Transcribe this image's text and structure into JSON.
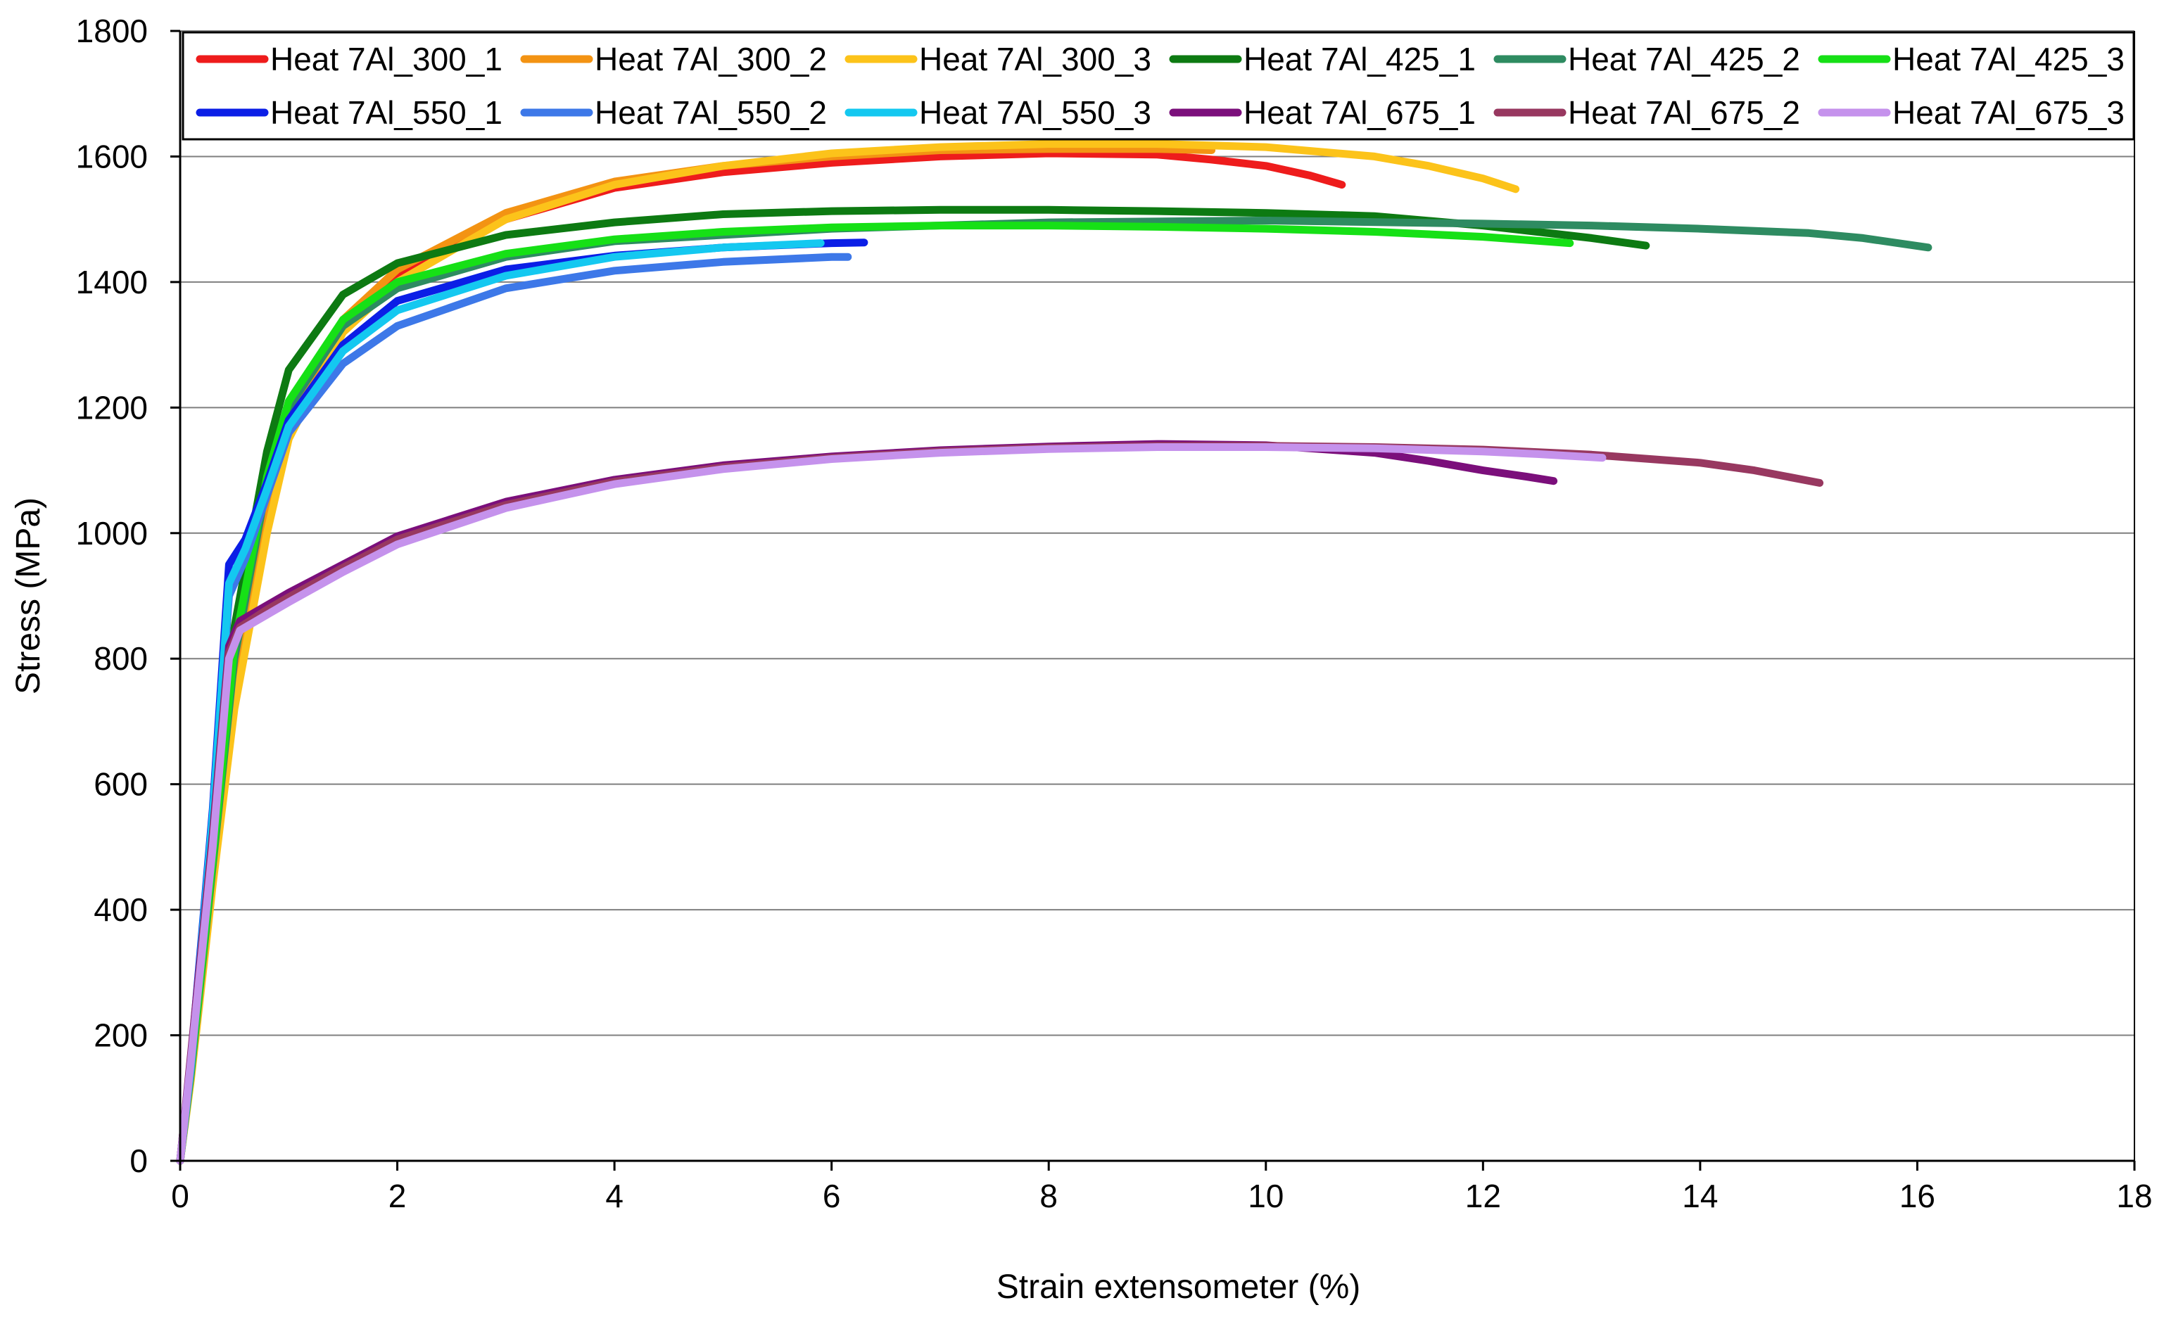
{
  "chart_data": {
    "type": "line",
    "title": "",
    "xlabel": "Strain extensometer (%)",
    "ylabel": "Stress (MPa)",
    "xlim": [
      0,
      18
    ],
    "ylim": [
      0,
      1800
    ],
    "xticks": [
      0,
      2,
      4,
      6,
      8,
      10,
      12,
      14,
      16,
      18
    ],
    "yticks": [
      0,
      200,
      400,
      600,
      800,
      1000,
      1200,
      1400,
      1600,
      1800
    ],
    "grid": "horizontal",
    "legend_position": "top",
    "series": [
      {
        "name": "Heat 7Al_300_1",
        "color": "#ee1c1c",
        "x": [
          0,
          0.1,
          0.3,
          0.5,
          0.8,
          1.0,
          1.5,
          2.0,
          3.0,
          4.0,
          5.0,
          6.0,
          7.0,
          8.0,
          9.0,
          9.5,
          10.0,
          10.4,
          10.7
        ],
        "y": [
          0,
          150,
          480,
          800,
          1060,
          1180,
          1330,
          1410,
          1500,
          1550,
          1575,
          1590,
          1600,
          1605,
          1603,
          1595,
          1585,
          1570,
          1555
        ]
      },
      {
        "name": "Heat 7Al_300_2",
        "color": "#f39313",
        "x": [
          0,
          0.1,
          0.3,
          0.5,
          0.8,
          1.0,
          1.5,
          2.0,
          3.0,
          4.0,
          5.0,
          6.0,
          7.0,
          8.0,
          9.0,
          9.5
        ],
        "y": [
          0,
          140,
          460,
          760,
          1030,
          1170,
          1340,
          1420,
          1510,
          1560,
          1585,
          1600,
          1610,
          1612,
          1612,
          1610
        ]
      },
      {
        "name": "Heat 7Al_300_3",
        "color": "#fcc31a",
        "x": [
          0,
          0.1,
          0.3,
          0.5,
          0.8,
          1.0,
          1.5,
          2.0,
          3.0,
          4.0,
          5.0,
          6.0,
          7.0,
          8.0,
          9.0,
          10.0,
          11.0,
          11.5,
          12.0,
          12.3
        ],
        "y": [
          0,
          130,
          440,
          720,
          1000,
          1150,
          1320,
          1400,
          1500,
          1555,
          1585,
          1605,
          1615,
          1620,
          1620,
          1615,
          1600,
          1585,
          1565,
          1548
        ]
      },
      {
        "name": "Heat 7Al_425_1",
        "color": "#0d7a12",
        "x": [
          0,
          0.1,
          0.3,
          0.5,
          0.8,
          1.0,
          1.5,
          2.0,
          3.0,
          4.0,
          5.0,
          6.0,
          7.0,
          8.0,
          9.0,
          10.0,
          11.0,
          12.0,
          12.5,
          13.0,
          13.5
        ],
        "y": [
          0,
          150,
          500,
          850,
          1130,
          1260,
          1380,
          1430,
          1475,
          1495,
          1508,
          1513,
          1515,
          1515,
          1513,
          1510,
          1505,
          1490,
          1480,
          1470,
          1458
        ]
      },
      {
        "name": "Heat 7Al_425_2",
        "color": "#2e8b61",
        "x": [
          0,
          0.1,
          0.3,
          0.5,
          0.8,
          1.0,
          1.5,
          2.0,
          3.0,
          4.0,
          6.0,
          8.0,
          10.0,
          12.0,
          13.0,
          14.0,
          15.0,
          15.5,
          16.1
        ],
        "y": [
          0,
          140,
          470,
          800,
          1080,
          1200,
          1330,
          1390,
          1440,
          1465,
          1485,
          1495,
          1498,
          1493,
          1490,
          1485,
          1478,
          1470,
          1455
        ]
      },
      {
        "name": "Heat 7Al_425_3",
        "color": "#16e016",
        "x": [
          0,
          0.1,
          0.3,
          0.5,
          0.8,
          1.0,
          1.5,
          2.0,
          3.0,
          4.0,
          5.0,
          6.0,
          7.0,
          8.0,
          9.0,
          10.0,
          11.0,
          12.0,
          12.8
        ],
        "y": [
          0,
          145,
          480,
          820,
          1090,
          1210,
          1340,
          1400,
          1445,
          1468,
          1480,
          1487,
          1490,
          1490,
          1488,
          1485,
          1480,
          1472,
          1462
        ]
      },
      {
        "name": "Heat 7Al_550_1",
        "color": "#0b1ee6",
        "x": [
          0,
          0.1,
          0.3,
          0.45,
          0.6,
          0.8,
          1.0,
          1.5,
          2.0,
          3.0,
          4.0,
          5.0,
          6.0,
          6.3
        ],
        "y": [
          0,
          160,
          560,
          950,
          990,
          1080,
          1180,
          1300,
          1370,
          1420,
          1442,
          1455,
          1462,
          1463
        ]
      },
      {
        "name": "Heat 7Al_550_2",
        "color": "#3d78e8",
        "x": [
          0,
          0.1,
          0.3,
          0.45,
          0.6,
          0.8,
          1.0,
          1.5,
          2.0,
          3.0,
          4.0,
          5.0,
          6.0,
          6.15
        ],
        "y": [
          0,
          150,
          540,
          900,
          960,
          1060,
          1160,
          1270,
          1330,
          1390,
          1418,
          1432,
          1440,
          1440
        ]
      },
      {
        "name": "Heat 7Al_550_3",
        "color": "#14c8f0",
        "x": [
          0,
          0.1,
          0.3,
          0.45,
          0.6,
          0.8,
          1.0,
          1.5,
          2.0,
          3.0,
          4.0,
          5.0,
          5.9
        ],
        "y": [
          0,
          155,
          550,
          920,
          975,
          1070,
          1170,
          1290,
          1355,
          1410,
          1440,
          1455,
          1462
        ]
      },
      {
        "name": "Heat 7Al_675_1",
        "color": "#7b0f7b",
        "x": [
          0,
          0.1,
          0.3,
          0.45,
          0.55,
          0.8,
          1.0,
          1.5,
          2.0,
          3.0,
          4.0,
          5.0,
          6.0,
          7.0,
          8.0,
          9.0,
          10.0,
          11.0,
          11.5,
          12.0,
          12.4,
          12.65
        ],
        "y": [
          0,
          170,
          520,
          820,
          860,
          885,
          905,
          950,
          995,
          1050,
          1085,
          1108,
          1122,
          1132,
          1138,
          1142,
          1140,
          1128,
          1115,
          1100,
          1090,
          1083
        ]
      },
      {
        "name": "Heat 7Al_675_2",
        "color": "#983860",
        "x": [
          0,
          0.1,
          0.3,
          0.45,
          0.55,
          0.8,
          1.0,
          1.5,
          2.0,
          3.0,
          4.0,
          5.0,
          6.0,
          7.0,
          8.0,
          9.0,
          10.0,
          11.0,
          12.0,
          13.0,
          14.0,
          14.5,
          15.1
        ],
        "y": [
          0,
          165,
          510,
          810,
          850,
          878,
          898,
          945,
          990,
          1045,
          1082,
          1105,
          1120,
          1130,
          1136,
          1139,
          1139,
          1137,
          1133,
          1125,
          1112,
          1100,
          1080
        ]
      },
      {
        "name": "Heat 7Al_675_3",
        "color": "#c592ec",
        "x": [
          0,
          0.1,
          0.3,
          0.45,
          0.55,
          0.8,
          1.0,
          1.5,
          2.0,
          3.0,
          4.0,
          5.0,
          6.0,
          7.0,
          8.0,
          9.0,
          10.0,
          11.0,
          12.0,
          12.5,
          13.1
        ],
        "y": [
          0,
          160,
          500,
          800,
          845,
          870,
          890,
          938,
          982,
          1040,
          1078,
          1102,
          1118,
          1128,
          1134,
          1137,
          1137,
          1135,
          1130,
          1126,
          1120
        ]
      }
    ]
  }
}
